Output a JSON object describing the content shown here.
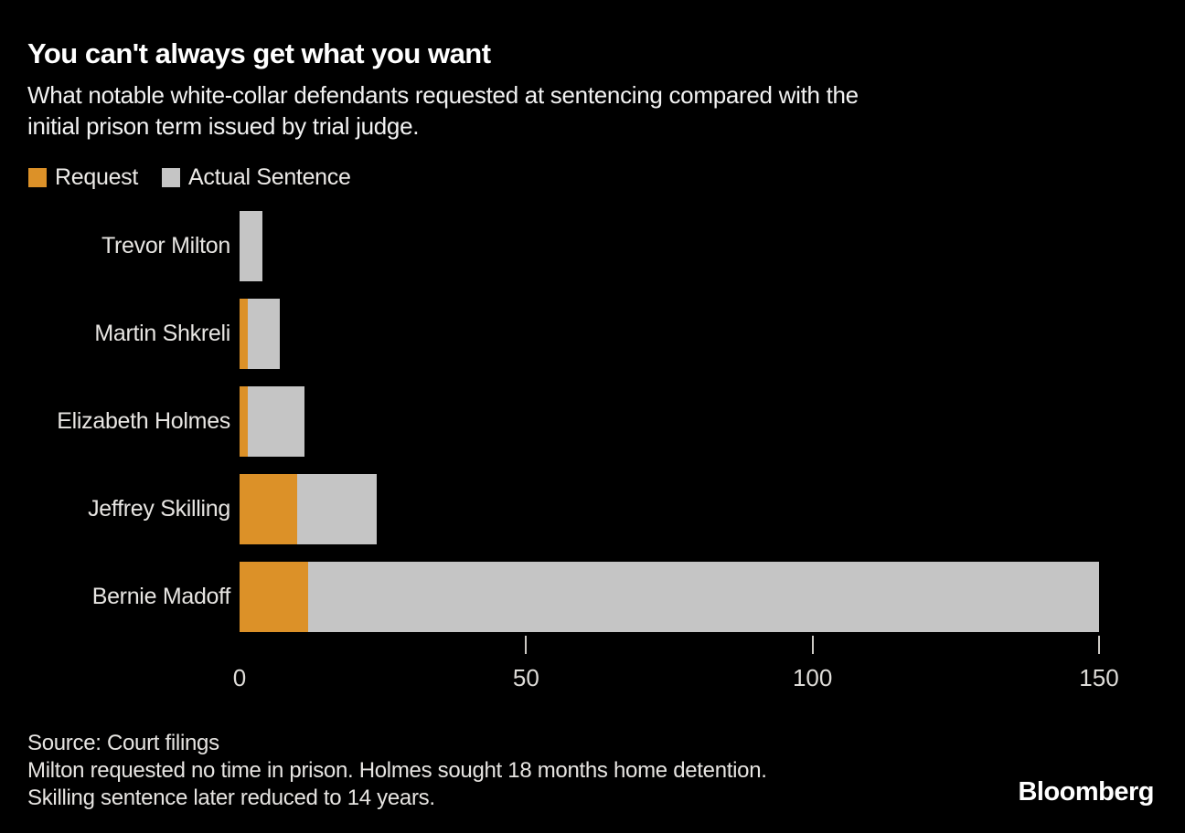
{
  "header": {
    "title": "You can't always get what you want",
    "subtitle_line1": "What notable white-collar defendants requested at sentencing compared with the",
    "subtitle_line2": "initial prison term issued by trial judge."
  },
  "legend": {
    "items": [
      {
        "label": "Request",
        "color": "#DC9128",
        "icon": "orange-swatch-icon"
      },
      {
        "label": "Actual Sentence",
        "color": "#C5C5C5",
        "icon": "gray-swatch-icon"
      }
    ]
  },
  "chart_data": {
    "type": "bar",
    "orientation": "horizontal",
    "unit": "years",
    "categories": [
      "Trevor Milton",
      "Martin Shkreli",
      "Elizabeth Holmes",
      "Jeffrey Skilling",
      "Bernie Madoff"
    ],
    "series": [
      {
        "name": "Request",
        "color": "#DC9128",
        "values": [
          0,
          1.5,
          1.5,
          10,
          12
        ]
      },
      {
        "name": "Actual Sentence",
        "color": "#C5C5C5",
        "values": [
          4,
          7,
          11.25,
          24,
          150
        ]
      }
    ],
    "render": "overlapped-from-zero",
    "xlim": [
      0,
      150
    ],
    "xticks": [
      0,
      50,
      100,
      150
    ],
    "grid": false,
    "legend_position": "top-left",
    "colors": {
      "request": "#DC9128",
      "actual": "#C5C5C5",
      "background": "#000000"
    }
  },
  "footer": {
    "source": "Source: Court filings",
    "notes": [
      "Milton requested no time in prison. Holmes sought 18 months home detention.",
      "Skilling sentence later reduced to 14 years."
    ],
    "brand": "Bloomberg"
  }
}
